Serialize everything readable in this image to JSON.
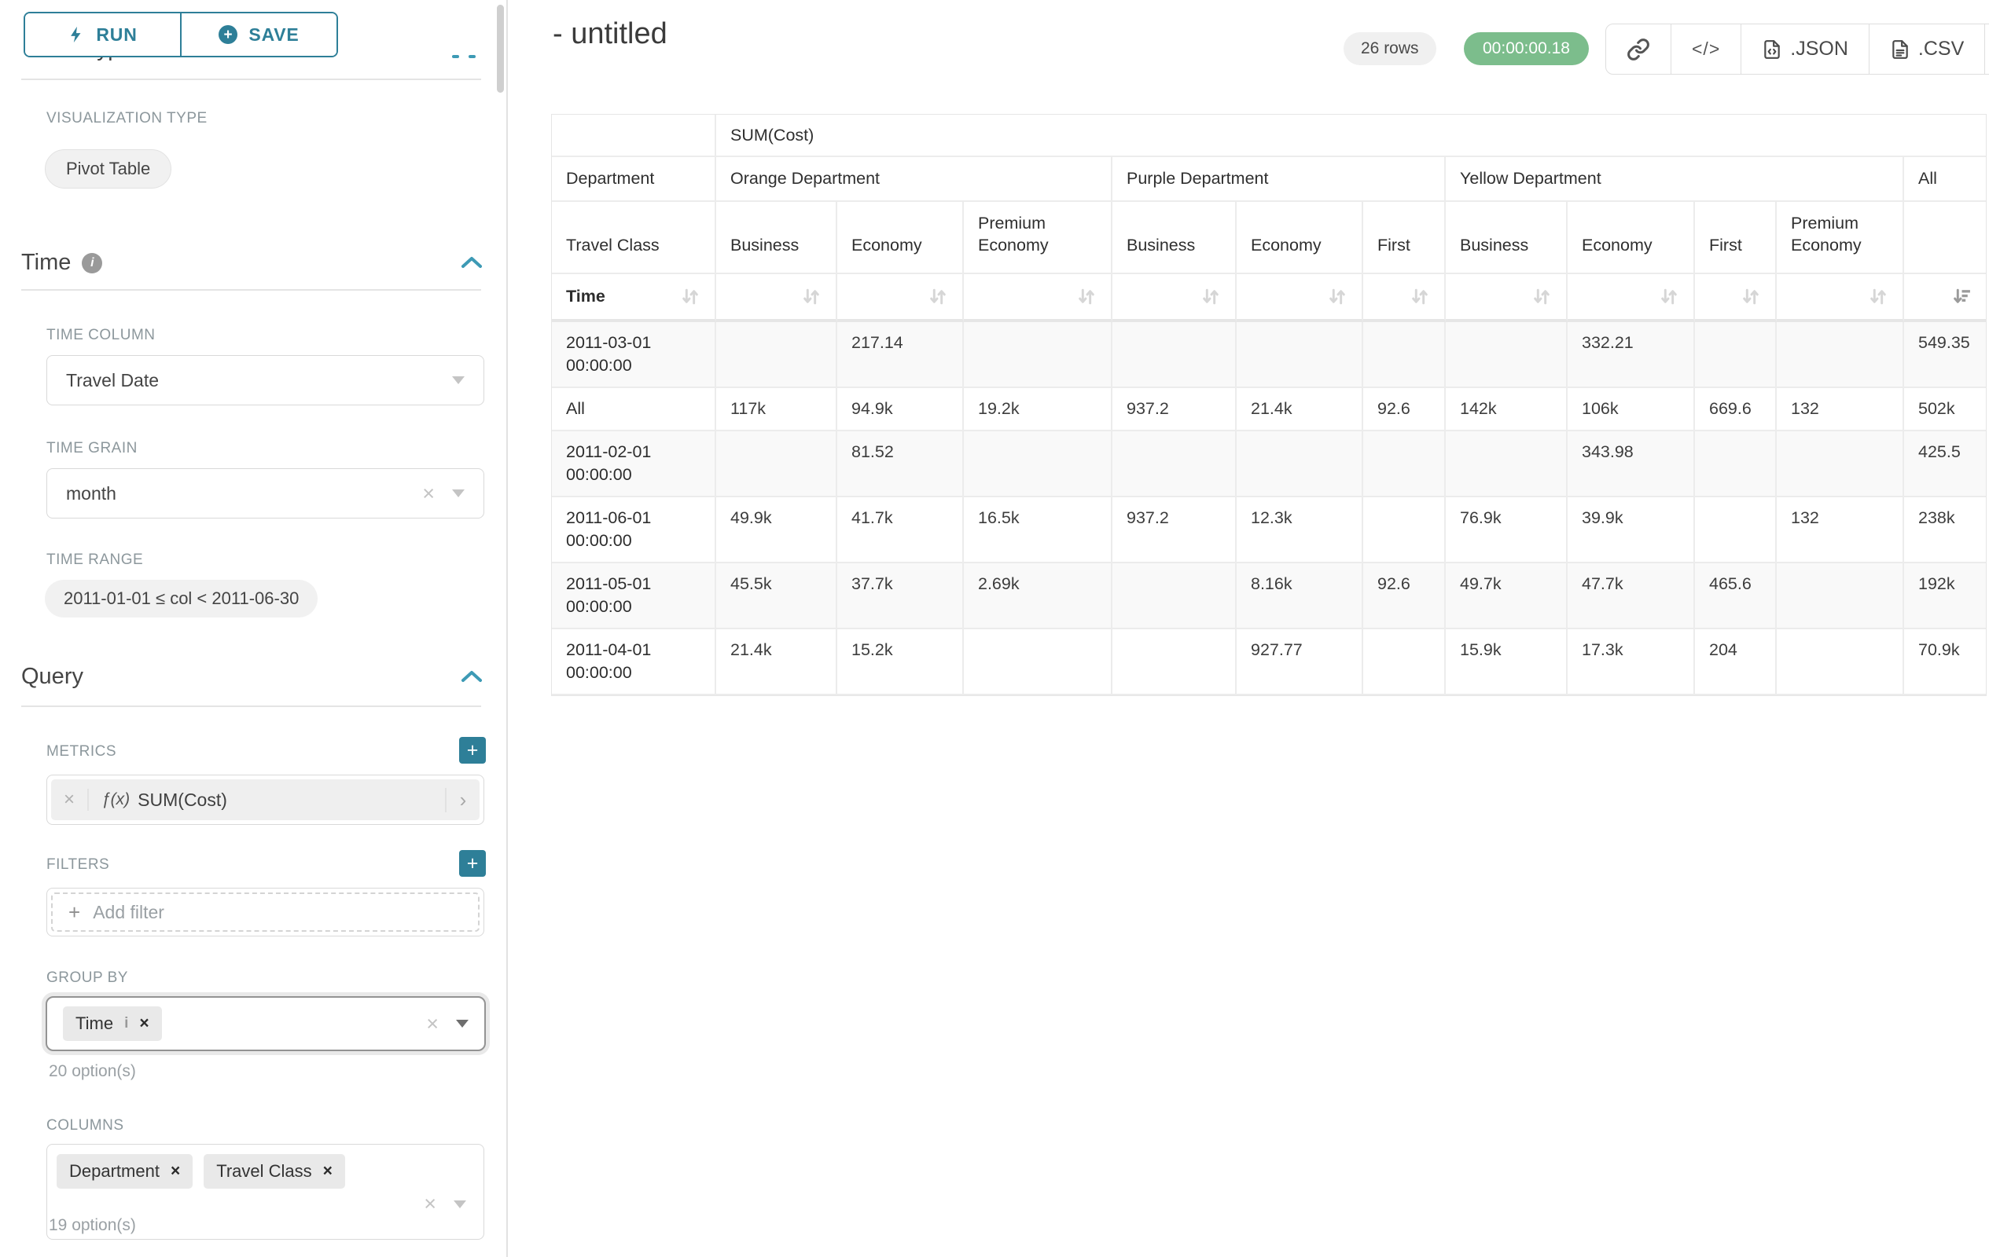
{
  "accent_teal": "#2e7f98",
  "timer_green": "#7cbd8c",
  "toolbar": {
    "run_label": "RUN",
    "save_label": "SAVE"
  },
  "sidebar": {
    "chart_type_header": "Chart Type",
    "visualization": {
      "label": "VISUALIZATION TYPE",
      "value": "Pivot Table"
    },
    "time_section": {
      "title": "Time",
      "time_column": {
        "label": "TIME COLUMN",
        "value": "Travel Date"
      },
      "time_grain": {
        "label": "TIME GRAIN",
        "value": "month"
      },
      "time_range": {
        "label": "TIME RANGE",
        "value": "2011-01-01 ≤ col < 2011-06-30"
      }
    },
    "query_section": {
      "title": "Query",
      "metrics": {
        "label": "METRICS",
        "fx": "ƒ(x)",
        "value": "SUM(Cost)"
      },
      "filters": {
        "label": "FILTERS",
        "placeholder": "Add filter"
      },
      "group_by": {
        "label": "GROUP BY",
        "chips": [
          "Time"
        ],
        "options_text": "20 option(s)"
      },
      "columns": {
        "label": "COLUMNS",
        "chips": [
          "Department",
          "Travel Class"
        ],
        "options_text": "19 option(s)"
      }
    }
  },
  "header": {
    "title": "- untitled",
    "row_count": "26 rows",
    "timer": "00:00:00.18",
    "json_label": ".JSON",
    "csv_label": ".CSV"
  },
  "pivot": {
    "metric_header": "SUM(Cost)",
    "row_dimension": "Department",
    "travel_class_label": "Travel Class",
    "time_label": "Time",
    "all_label": "All",
    "col_groups": [
      {
        "label": "Orange Department",
        "classes": [
          "Business",
          "Economy",
          "Premium Economy"
        ]
      },
      {
        "label": "Purple Department",
        "classes": [
          "Business",
          "Economy",
          "First"
        ]
      },
      {
        "label": "Yellow Department",
        "classes": [
          "Business",
          "Economy",
          "First",
          "Premium Economy"
        ]
      }
    ],
    "rows": [
      {
        "label": "2011-03-01 00:00:00",
        "values": [
          "",
          "217.14",
          "",
          "",
          "",
          "",
          "",
          "332.21",
          "",
          "",
          "549.35"
        ]
      },
      {
        "label": "All",
        "values": [
          "117k",
          "94.9k",
          "19.2k",
          "937.2",
          "21.4k",
          "92.6",
          "142k",
          "106k",
          "669.6",
          "132",
          "502k"
        ]
      },
      {
        "label": "2011-02-01 00:00:00",
        "values": [
          "",
          "81.52",
          "",
          "",
          "",
          "",
          "",
          "343.98",
          "",
          "",
          "425.5"
        ]
      },
      {
        "label": "2011-06-01 00:00:00",
        "values": [
          "49.9k",
          "41.7k",
          "16.5k",
          "937.2",
          "12.3k",
          "",
          "76.9k",
          "39.9k",
          "",
          "132",
          "238k"
        ]
      },
      {
        "label": "2011-05-01 00:00:00",
        "values": [
          "45.5k",
          "37.7k",
          "2.69k",
          "",
          "8.16k",
          "92.6",
          "49.7k",
          "47.7k",
          "465.6",
          "",
          "192k"
        ]
      },
      {
        "label": "2011-04-01 00:00:00",
        "values": [
          "21.4k",
          "15.2k",
          "",
          "",
          "927.77",
          "",
          "15.9k",
          "17.3k",
          "204",
          "",
          "70.9k"
        ]
      }
    ]
  }
}
